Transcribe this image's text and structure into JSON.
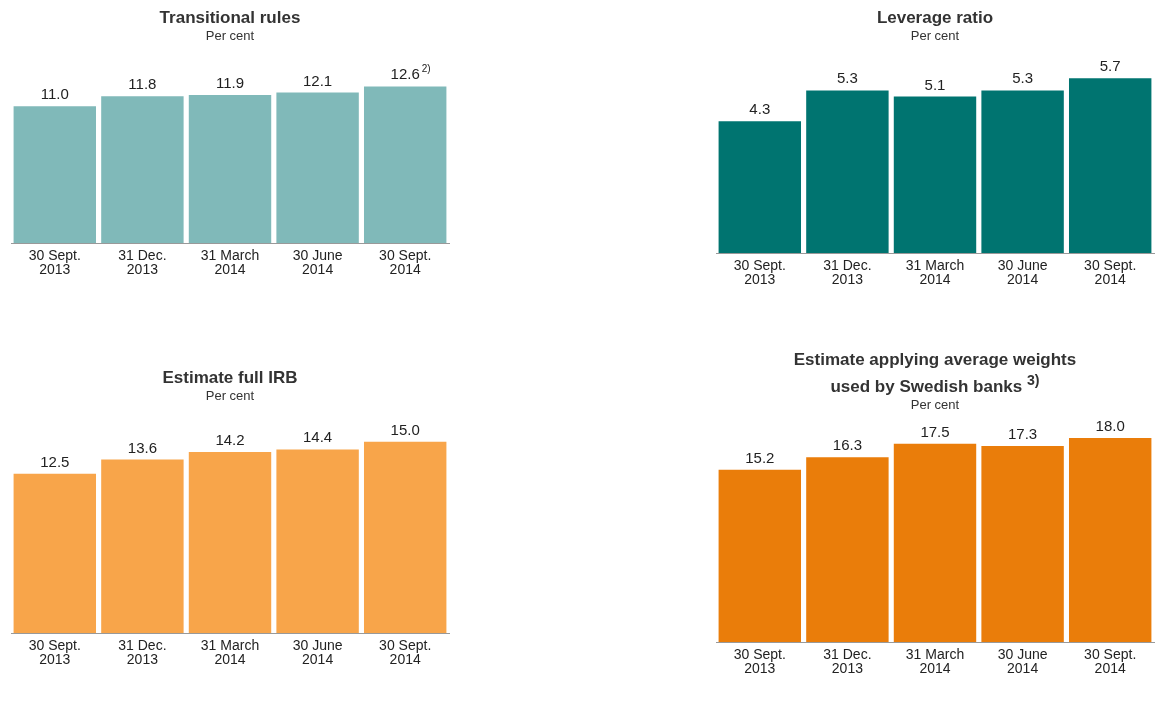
{
  "chart_data": [
    {
      "type": "bar",
      "title": "Transitional rules",
      "subtitle": "Per cent",
      "categories": [
        "30 Sept. 2013",
        "31 Dec. 2013",
        "31 March 2014",
        "30 June 2014",
        "30 Sept. 2014"
      ],
      "values": [
        11.0,
        11.8,
        11.9,
        12.1,
        12.6
      ],
      "value_labels": [
        "11.0",
        "11.8",
        "11.9",
        "12.1",
        "12.6$^{2)}$"
      ],
      "color": "#80b9b9",
      "tick_labels": "x"
    },
    {
      "type": "bar",
      "title": "Leverage ratio",
      "subtitle": "Per cent",
      "categories": [
        "30 Sept. 2013",
        "31 Dec. 2013",
        "31 March 2014",
        "30 June 2014",
        "30 Sept. 2014"
      ],
      "values": [
        4.3,
        5.3,
        5.1,
        5.3,
        5.7
      ],
      "value_labels": [
        "4.3",
        "5.3",
        "5.1",
        "5.3",
        "5.7"
      ],
      "color": "#007470",
      "tick_labels": "x"
    },
    {
      "type": "bar",
      "title": "Estimate full IRB",
      "subtitle": "Per cent",
      "categories": [
        "30 Sept. 2013",
        "31 Dec. 2013",
        "31 March 2014",
        "30 June 2014",
        "30 Sept. 2014"
      ],
      "values": [
        12.5,
        13.6,
        14.2,
        14.4,
        15.0
      ],
      "value_labels": [
        "12.5",
        "13.6",
        "14.2",
        "14.4",
        "15.0"
      ],
      "color": "#f8a54a",
      "tick_labels": "x"
    },
    {
      "type": "bar",
      "title": "Estimate applying average weights\nused by Swedish banks $^{3)}$",
      "subtitle": "Per cent",
      "categories": [
        "30 Sept. 2013",
        "31 Dec. 2013",
        "31 March 2014",
        "30 June 2014",
        "30 Sept. 2014"
      ],
      "values": [
        15.2,
        16.3,
        17.5,
        17.3,
        18.0
      ],
      "value_labels": [
        "15.2",
        "16.3",
        "17.5",
        "17.3",
        "18.0"
      ],
      "color": "#ea7d0a",
      "tick_labels": "x"
    }
  ]
}
